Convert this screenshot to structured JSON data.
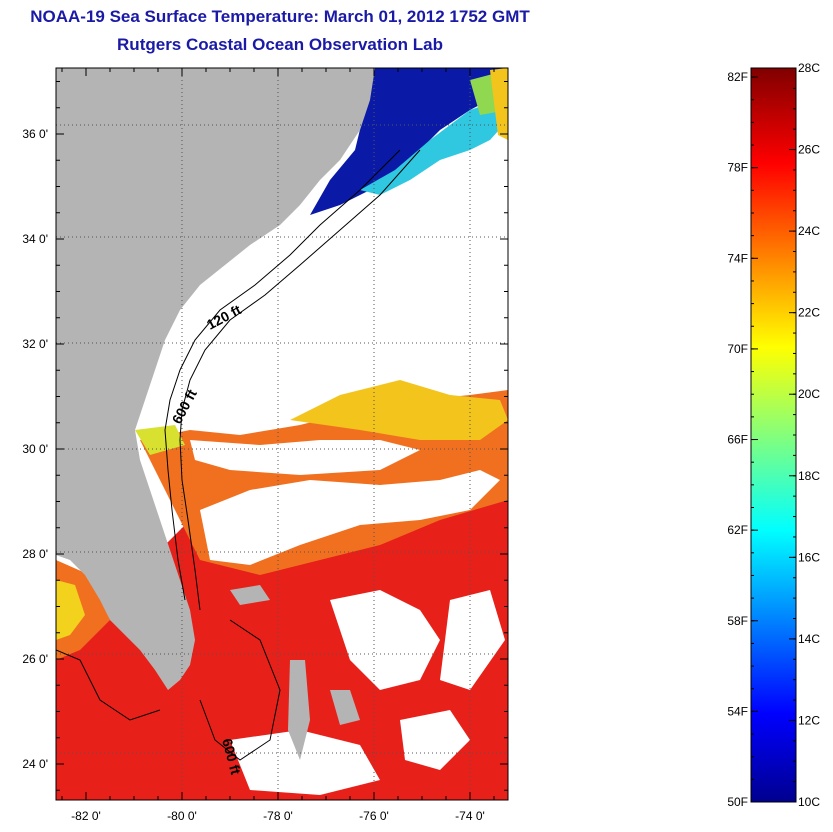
{
  "header": {
    "title": "NOAA-19 Sea Surface Temperature:  March 01, 2012 1752 GMT",
    "subtitle": "Rutgers Coastal Ocean Observation Lab"
  },
  "map": {
    "lon_ticks": [
      {
        "value": -82,
        "label": "-82 0'"
      },
      {
        "value": -80,
        "label": "-80 0'"
      },
      {
        "value": -78,
        "label": "-78 0'"
      },
      {
        "value": -76,
        "label": "-76 0'"
      },
      {
        "value": -74,
        "label": "-74 0'"
      }
    ],
    "lat_ticks": [
      {
        "value": 36,
        "label": "36 0'"
      },
      {
        "value": 34,
        "label": "34 0'"
      },
      {
        "value": 32,
        "label": "32 0'"
      },
      {
        "value": 30,
        "label": "30 0'"
      },
      {
        "value": 28,
        "label": "28 0'"
      },
      {
        "value": 26,
        "label": "26 0'"
      },
      {
        "value": 24,
        "label": "24 0'"
      }
    ],
    "contour_labels": [
      "120 ft",
      "600 ft",
      "600 ft"
    ],
    "colors": {
      "land": "#b4b4b4",
      "cloud": "#ffffff",
      "warm": "#e8201a",
      "orange": "#f26a1c",
      "yellow": "#f2d21c",
      "cold": "#0a1aa6"
    }
  },
  "colorbar": {
    "fahrenheit_labels": [
      "82F",
      "78F",
      "74F",
      "70F",
      "66F",
      "62F",
      "58F",
      "54F",
      "50F"
    ],
    "celsius_labels": [
      "28C",
      "26C",
      "24C",
      "22C",
      "20C",
      "18C",
      "16C",
      "14C",
      "12C",
      "10C"
    ],
    "range_c": [
      10,
      28
    ],
    "range_f": [
      50,
      82.4
    ]
  }
}
